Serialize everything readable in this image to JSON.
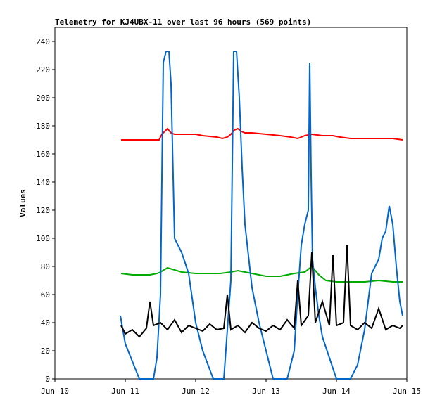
{
  "chart_data": {
    "type": "line",
    "title": "Telemetry for KJ4UBX-11 over last 96 hours (569 points)",
    "xlabel": "",
    "ylabel": "Values",
    "x_ticks": [
      "Jun 10",
      "Jun 11",
      "Jun 12",
      "Jun 13",
      "Jun 14",
      "Jun 15"
    ],
    "xlim": [
      0,
      5
    ],
    "ylim": [
      0,
      250
    ],
    "y_ticks": [
      0,
      20,
      40,
      60,
      80,
      100,
      120,
      140,
      160,
      180,
      200,
      220,
      240
    ],
    "grid": false,
    "legend": "none",
    "series": [
      {
        "color": "#ff0000",
        "x": [
          0.94,
          1.1,
          1.3,
          1.48,
          1.52,
          1.56,
          1.6,
          1.65,
          1.7,
          2.0,
          2.1,
          2.3,
          2.38,
          2.45,
          2.5,
          2.55,
          2.6,
          2.65,
          2.7,
          2.8,
          3.0,
          3.2,
          3.35,
          3.45,
          3.55,
          3.65,
          3.8,
          3.95,
          4.05,
          4.2,
          4.4,
          4.6,
          4.8,
          4.94
        ],
        "values": [
          170,
          170,
          170,
          170,
          174,
          176,
          178,
          175,
          174,
          174,
          173,
          172,
          171,
          172,
          174,
          177,
          178,
          176,
          175,
          175,
          174,
          173,
          172,
          171,
          173,
          174,
          173,
          173,
          172,
          171,
          171,
          171,
          171,
          170
        ]
      },
      {
        "color": "#00aa00",
        "x": [
          0.94,
          1.1,
          1.2,
          1.35,
          1.45,
          1.5,
          1.6,
          1.8,
          2.0,
          2.2,
          2.35,
          2.5,
          2.6,
          2.8,
          3.0,
          3.2,
          3.4,
          3.55,
          3.65,
          3.75,
          3.85,
          4.0,
          4.2,
          4.4,
          4.6,
          4.8,
          4.94
        ],
        "values": [
          75,
          74,
          74,
          74,
          75,
          76,
          79,
          76,
          75,
          75,
          75,
          76,
          77,
          75,
          73,
          73,
          75,
          76,
          80,
          74,
          70,
          69,
          69,
          69,
          70,
          69,
          69
        ]
      },
      {
        "color": "#0066cc",
        "x": [
          0.93,
          1.0,
          1.2,
          1.3,
          1.4,
          1.45,
          1.5,
          1.54,
          1.58,
          1.62,
          1.65,
          1.7,
          1.8,
          1.9,
          2.0,
          2.1,
          2.25,
          2.3,
          2.4,
          2.45,
          2.5,
          2.54,
          2.58,
          2.62,
          2.66,
          2.7,
          2.8,
          2.9,
          3.0,
          3.1,
          3.2,
          3.3,
          3.4,
          3.45,
          3.5,
          3.55,
          3.6,
          3.62,
          3.64,
          3.66,
          3.7,
          3.75,
          3.8,
          3.9,
          4.0,
          4.1,
          4.2,
          4.3,
          4.4,
          4.45,
          4.5,
          4.55,
          4.6,
          4.65,
          4.7,
          4.75,
          4.8,
          4.85,
          4.9,
          4.94
        ],
        "values": [
          45,
          25,
          0,
          0,
          0,
          15,
          60,
          225,
          233,
          233,
          210,
          100,
          90,
          75,
          40,
          20,
          0,
          0,
          0,
          35,
          70,
          233,
          233,
          200,
          150,
          110,
          65,
          40,
          20,
          0,
          0,
          0,
          20,
          60,
          95,
          110,
          120,
          225,
          145,
          85,
          65,
          45,
          30,
          15,
          0,
          0,
          0,
          10,
          35,
          55,
          75,
          80,
          85,
          100,
          105,
          123,
          110,
          80,
          55,
          45
        ]
      },
      {
        "color": "#000000",
        "x": [
          0.94,
          1.0,
          1.1,
          1.2,
          1.3,
          1.35,
          1.4,
          1.5,
          1.6,
          1.7,
          1.8,
          1.9,
          2.0,
          2.1,
          2.2,
          2.3,
          2.4,
          2.45,
          2.5,
          2.6,
          2.7,
          2.8,
          2.9,
          3.0,
          3.1,
          3.2,
          3.3,
          3.4,
          3.45,
          3.5,
          3.6,
          3.65,
          3.7,
          3.8,
          3.9,
          3.95,
          4.0,
          4.1,
          4.15,
          4.2,
          4.3,
          4.4,
          4.5,
          4.6,
          4.7,
          4.8,
          4.9,
          4.94
        ],
        "values": [
          38,
          32,
          35,
          30,
          36,
          55,
          38,
          40,
          35,
          42,
          33,
          38,
          36,
          34,
          39,
          35,
          36,
          60,
          35,
          38,
          33,
          40,
          36,
          34,
          38,
          35,
          42,
          36,
          70,
          38,
          45,
          90,
          40,
          55,
          38,
          88,
          38,
          40,
          95,
          38,
          35,
          40,
          36,
          50,
          35,
          38,
          36,
          38
        ]
      }
    ]
  }
}
